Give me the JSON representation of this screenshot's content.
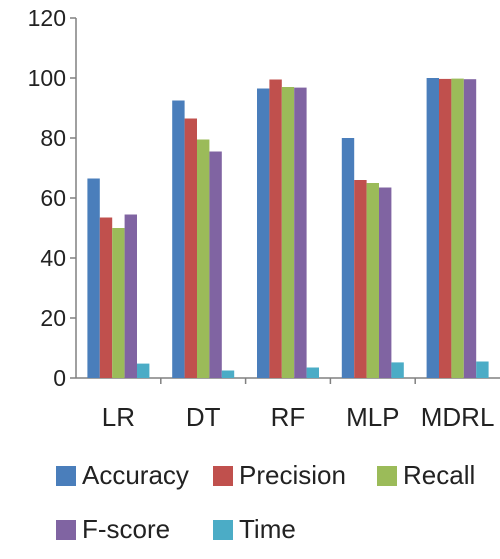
{
  "chart_data": {
    "type": "bar",
    "categories": [
      "LR",
      "DT",
      "RF",
      "MLP",
      "MDRL"
    ],
    "series": [
      {
        "name": "Accuracy",
        "color": "#4a7ebb",
        "values": [
          66.5,
          92.5,
          96.5,
          80,
          100
        ]
      },
      {
        "name": "Precision",
        "color": "#c0504d",
        "values": [
          53.5,
          86.5,
          99.5,
          66,
          99.7
        ]
      },
      {
        "name": "Recall",
        "color": "#9bbb59",
        "values": [
          50,
          79.5,
          97,
          65,
          99.8
        ]
      },
      {
        "name": "F-score",
        "color": "#8064a2",
        "values": [
          54.5,
          75.5,
          96.8,
          63.5,
          99.6
        ]
      },
      {
        "name": "Time",
        "color": "#4bacc6",
        "values": [
          4.8,
          2.5,
          3.5,
          5.2,
          5.5
        ]
      }
    ],
    "yticks": [
      "0",
      "20",
      "40",
      "60",
      "80",
      "100",
      "120"
    ],
    "ylim": [
      0,
      120
    ],
    "legend_position": "bottom",
    "grid": false
  }
}
